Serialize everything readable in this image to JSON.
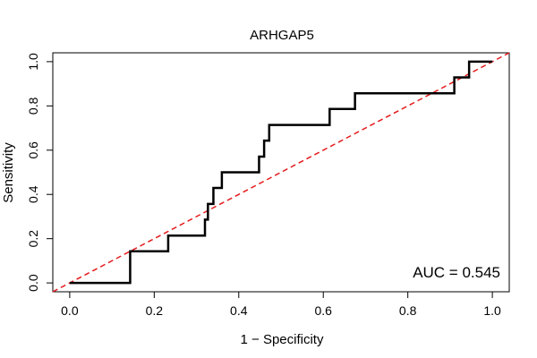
{
  "chart_data": {
    "type": "line",
    "title": "ARHGAP5",
    "xlabel": "1 − Specificity",
    "ylabel": "Sensitivity",
    "xlim": [
      -0.04,
      1.04
    ],
    "ylim": [
      -0.04,
      1.04
    ],
    "xticks": [
      "0.0",
      "0.2",
      "0.4",
      "0.6",
      "0.8",
      "1.0"
    ],
    "yticks": [
      "0.0",
      "0.2",
      "0.4",
      "0.6",
      "0.8",
      "1.0"
    ],
    "grid": false,
    "annotation": "AUC = 0.545",
    "series": [
      {
        "kind": "roc-step",
        "color": "#000000",
        "points": [
          [
            0.0,
            0.0
          ],
          [
            0.143,
            0.0
          ],
          [
            0.143,
            0.143
          ],
          [
            0.233,
            0.143
          ],
          [
            0.233,
            0.214
          ],
          [
            0.32,
            0.214
          ],
          [
            0.32,
            0.286
          ],
          [
            0.327,
            0.286
          ],
          [
            0.327,
            0.357
          ],
          [
            0.34,
            0.357
          ],
          [
            0.34,
            0.429
          ],
          [
            0.36,
            0.429
          ],
          [
            0.36,
            0.5
          ],
          [
            0.448,
            0.5
          ],
          [
            0.448,
            0.571
          ],
          [
            0.46,
            0.571
          ],
          [
            0.46,
            0.643
          ],
          [
            0.472,
            0.643
          ],
          [
            0.472,
            0.714
          ],
          [
            0.615,
            0.714
          ],
          [
            0.615,
            0.786
          ],
          [
            0.675,
            0.786
          ],
          [
            0.675,
            0.857
          ],
          [
            0.91,
            0.857
          ],
          [
            0.91,
            0.929
          ],
          [
            0.945,
            0.929
          ],
          [
            0.945,
            1.0
          ],
          [
            1.0,
            1.0
          ]
        ]
      },
      {
        "kind": "reference-diagonal",
        "color": "#e41a1c",
        "dashed": true,
        "points": [
          [
            -0.04,
            -0.04
          ],
          [
            1.04,
            1.04
          ]
        ]
      }
    ]
  }
}
